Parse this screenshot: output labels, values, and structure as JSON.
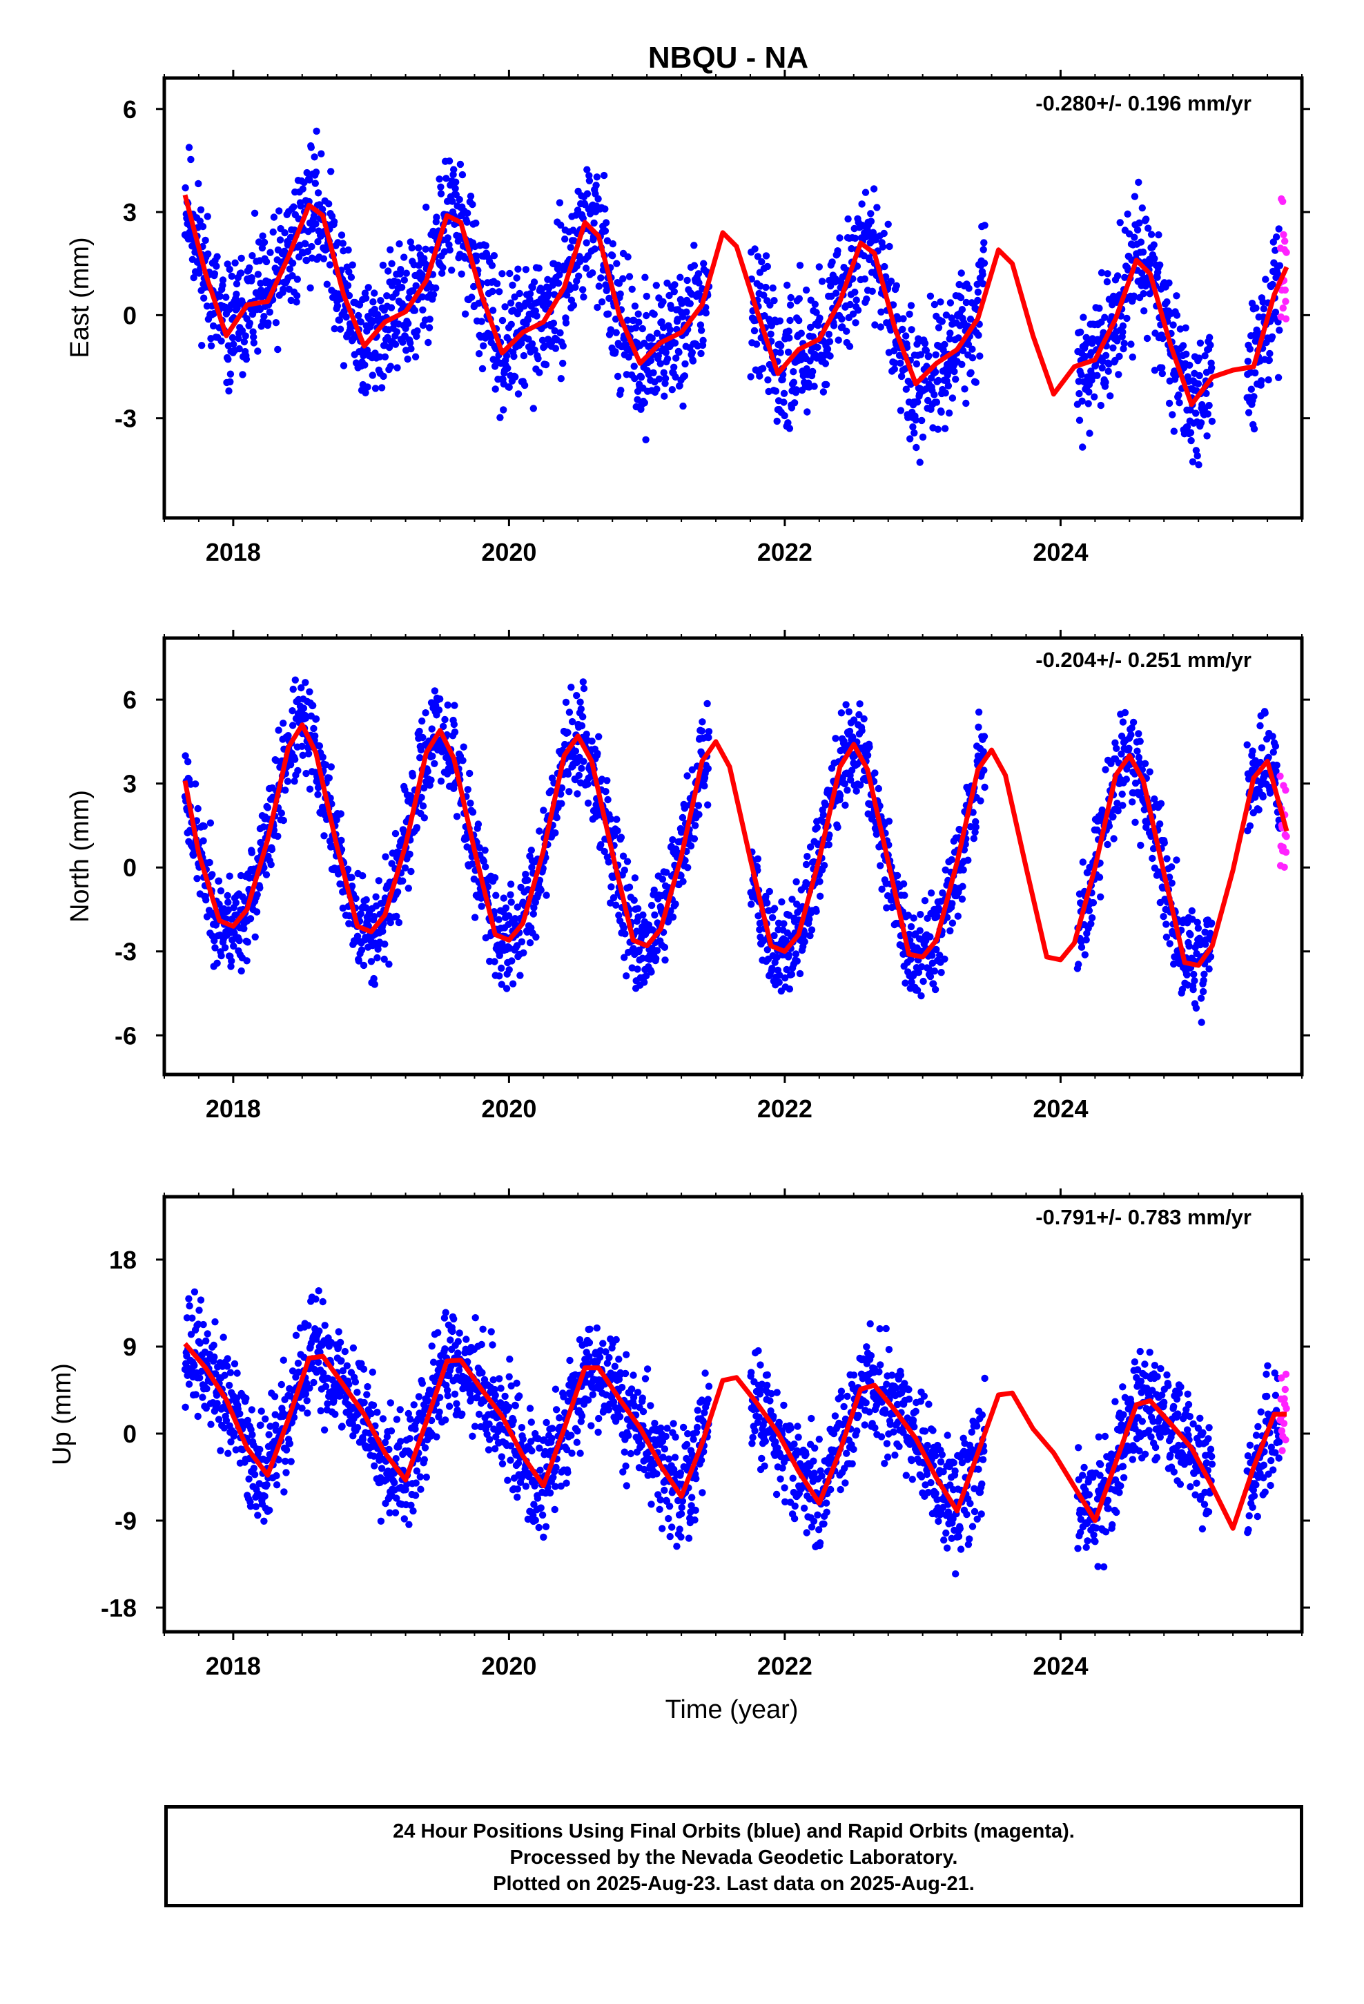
{
  "title": "NBQU - NA",
  "colors": {
    "final_orbits": "#0000ff",
    "rapid_orbits": "#ff22ff",
    "fit": "#ff0000",
    "frame": "#000000"
  },
  "xlabel": "Time (year)",
  "footer": {
    "line1": "24 Hour Positions Using Final Orbits (blue) and Rapid Orbits (magenta).",
    "line2": "Processed by the Nevada Geodetic Laboratory.",
    "line3": "Plotted on 2025-Aug-23. Last data on 2025-Aug-21."
  },
  "chart_data": [
    {
      "type": "scatter",
      "ylabel": "East (mm)",
      "rate": "-0.280+/- 0.196 mm/yr",
      "xlim": [
        2017.5,
        2025.75
      ],
      "ylim": [
        -5.9,
        6.9
      ],
      "xticks": [
        2018,
        2020,
        2022,
        2024
      ],
      "xtick_labels": [
        "2018",
        "2020",
        "2022",
        "2024"
      ],
      "yticks": [
        -3,
        0,
        3,
        6
      ],
      "ytick_labels": [
        "-3",
        "0",
        "3",
        "6"
      ],
      "data_start": 2017.65,
      "data_end": 2025.64,
      "gaps": [
        [
          2021.45,
          2021.75
        ],
        [
          2023.45,
          2024.12
        ],
        [
          2025.1,
          2025.35
        ]
      ],
      "rapid_start": 2025.59,
      "series": [
        {
          "name": "Final Orbits",
          "note": "about 2500 daily positions, blue dots"
        },
        {
          "name": "Rapid Orbits",
          "note": "daily positions, magenta dots at the end"
        },
        {
          "name": "Model fit",
          "note": "red curve"
        }
      ],
      "fit": {
        "x": [
          2017.65,
          2017.8,
          2017.95,
          2018.1,
          2018.25,
          2018.4,
          2018.55,
          2018.65,
          2018.8,
          2018.95,
          2019.1,
          2019.25,
          2019.4,
          2019.55,
          2019.65,
          2019.8,
          2019.95,
          2020.1,
          2020.25,
          2020.4,
          2020.55,
          2020.65,
          2020.8,
          2020.95,
          2021.1,
          2021.25,
          2021.4,
          2021.55,
          2021.65,
          2021.8,
          2021.95,
          2022.1,
          2022.25,
          2022.4,
          2022.55,
          2022.65,
          2022.8,
          2022.95,
          2023.1,
          2023.25,
          2023.4,
          2023.55,
          2023.65,
          2023.8,
          2023.95,
          2024.1,
          2024.25,
          2024.4,
          2024.55,
          2024.65,
          2024.8,
          2024.95,
          2025.1,
          2025.25,
          2025.4,
          2025.55,
          2025.64
        ],
        "y": [
          3.5,
          1.2,
          -0.6,
          0.3,
          0.4,
          1.7,
          3.2,
          2.9,
          0.6,
          -0.9,
          -0.2,
          0.1,
          1.0,
          2.9,
          2.7,
          0.6,
          -1.1,
          -0.5,
          -0.2,
          0.8,
          2.7,
          2.3,
          0.0,
          -1.4,
          -0.8,
          -0.5,
          0.3,
          2.4,
          2.0,
          0.1,
          -1.7,
          -1.0,
          -0.7,
          0.4,
          2.1,
          1.8,
          -0.4,
          -2.0,
          -1.4,
          -1.0,
          -0.1,
          1.9,
          1.5,
          -0.6,
          -2.3,
          -1.5,
          -1.3,
          -0.1,
          1.6,
          1.2,
          -0.9,
          -2.6,
          -1.8,
          -1.6,
          -1.5,
          0.6,
          1.4
        ]
      }
    },
    {
      "type": "scatter",
      "ylabel": "North (mm)",
      "rate": "-0.204+/- 0.251 mm/yr",
      "xlim": [
        2017.5,
        2025.75
      ],
      "ylim": [
        -7.4,
        8.2
      ],
      "xticks": [
        2018,
        2020,
        2022,
        2024
      ],
      "xtick_labels": [
        "2018",
        "2020",
        "2022",
        "2024"
      ],
      "yticks": [
        -6,
        -3,
        0,
        3,
        6
      ],
      "ytick_labels": [
        "-6",
        "-3",
        "0",
        "3",
        "6"
      ],
      "data_start": 2017.65,
      "data_end": 2025.64,
      "gaps": [
        [
          2021.45,
          2021.75
        ],
        [
          2023.45,
          2024.12
        ],
        [
          2025.1,
          2025.35
        ]
      ],
      "rapid_start": 2025.59,
      "series": [
        {
          "name": "Final Orbits",
          "note": "about 2500 daily positions, blue dots"
        },
        {
          "name": "Rapid Orbits",
          "note": "daily positions, magenta dots at the end"
        },
        {
          "name": "Model fit",
          "note": "red curve"
        }
      ],
      "fit": {
        "x": [
          2017.65,
          2017.75,
          2017.9,
          2018.0,
          2018.1,
          2018.25,
          2018.4,
          2018.5,
          2018.6,
          2018.75,
          2018.9,
          2019.0,
          2019.1,
          2019.25,
          2019.4,
          2019.5,
          2019.6,
          2019.75,
          2019.9,
          2020.0,
          2020.1,
          2020.25,
          2020.4,
          2020.5,
          2020.6,
          2020.75,
          2020.9,
          2021.0,
          2021.1,
          2021.25,
          2021.4,
          2021.5,
          2021.6,
          2021.75,
          2021.9,
          2022.0,
          2022.1,
          2022.25,
          2022.4,
          2022.5,
          2022.6,
          2022.75,
          2022.9,
          2023.0,
          2023.1,
          2023.25,
          2023.4,
          2023.5,
          2023.6,
          2023.75,
          2023.9,
          2024.0,
          2024.1,
          2024.25,
          2024.4,
          2024.5,
          2024.6,
          2024.75,
          2024.9,
          2025.0,
          2025.1,
          2025.25,
          2025.4,
          2025.5,
          2025.64
        ],
        "y": [
          3.1,
          0.5,
          -1.9,
          -2.1,
          -1.5,
          1.0,
          4.3,
          5.1,
          4.1,
          0.8,
          -2.1,
          -2.3,
          -1.7,
          0.8,
          4.1,
          4.9,
          3.9,
          0.6,
          -2.4,
          -2.6,
          -2.0,
          0.6,
          4.0,
          4.7,
          3.8,
          0.5,
          -2.6,
          -2.8,
          -2.2,
          0.4,
          3.8,
          4.5,
          3.6,
          0.3,
          -2.8,
          -3.0,
          -2.4,
          0.3,
          3.6,
          4.4,
          3.5,
          0.2,
          -3.1,
          -3.2,
          -2.6,
          0.2,
          3.5,
          4.2,
          3.3,
          0.0,
          -3.2,
          -3.3,
          -2.7,
          0.0,
          3.3,
          4.0,
          3.1,
          -0.2,
          -3.4,
          -3.5,
          -2.8,
          -0.1,
          3.2,
          3.8,
          1.3
        ]
      }
    },
    {
      "type": "scatter",
      "ylabel": "Up (mm)",
      "rate": "-0.791+/- 0.783 mm/yr",
      "xlim": [
        2017.5,
        2025.75
      ],
      "ylim": [
        -20.5,
        24.5
      ],
      "xticks": [
        2018,
        2020,
        2022,
        2024
      ],
      "xtick_labels": [
        "2018",
        "2020",
        "2022",
        "2024"
      ],
      "yticks": [
        -18,
        -9,
        0,
        9,
        18
      ],
      "ytick_labels": [
        "-18",
        "-9",
        "0",
        "9",
        "18"
      ],
      "data_start": 2017.65,
      "data_end": 2025.64,
      "gaps": [
        [
          2021.45,
          2021.75
        ],
        [
          2023.45,
          2024.12
        ],
        [
          2025.1,
          2025.35
        ]
      ],
      "rapid_start": 2025.59,
      "series": [
        {
          "name": "Final Orbits",
          "note": "about 2500 daily positions, blue dots"
        },
        {
          "name": "Rapid Orbits",
          "note": "daily positions, magenta dots at the end"
        },
        {
          "name": "Model fit",
          "note": "red curve"
        }
      ],
      "fit": {
        "x": [
          2017.65,
          2017.8,
          2017.95,
          2018.1,
          2018.25,
          2018.4,
          2018.55,
          2018.65,
          2018.8,
          2018.95,
          2019.1,
          2019.25,
          2019.4,
          2019.55,
          2019.65,
          2019.8,
          2019.95,
          2020.1,
          2020.25,
          2020.4,
          2020.55,
          2020.65,
          2020.8,
          2020.95,
          2021.1,
          2021.25,
          2021.4,
          2021.55,
          2021.65,
          2021.8,
          2021.95,
          2022.1,
          2022.25,
          2022.4,
          2022.55,
          2022.65,
          2022.8,
          2022.95,
          2023.1,
          2023.25,
          2023.4,
          2023.55,
          2023.65,
          2023.8,
          2023.95,
          2024.1,
          2024.25,
          2024.4,
          2024.55,
          2024.65,
          2024.8,
          2024.95,
          2025.1,
          2025.25,
          2025.4,
          2025.55,
          2025.64
        ],
        "y": [
          9.3,
          6.8,
          3.5,
          -1.5,
          -4.3,
          1.5,
          7.8,
          8.0,
          5.0,
          2.0,
          -2.0,
          -4.8,
          1.2,
          7.5,
          7.6,
          4.6,
          1.8,
          -2.3,
          -5.4,
          0.5,
          6.8,
          6.8,
          3.6,
          0.6,
          -3.3,
          -6.5,
          -1.0,
          5.5,
          5.8,
          3.1,
          0.1,
          -3.9,
          -7.2,
          -1.8,
          4.6,
          5.0,
          2.4,
          -0.5,
          -4.6,
          -8.0,
          -2.0,
          4.0,
          4.2,
          0.5,
          -2.0,
          -5.5,
          -9.0,
          -3.0,
          3.0,
          3.4,
          1.0,
          -1.5,
          -5.5,
          -9.8,
          -3.5,
          2.0,
          2.0
        ]
      }
    }
  ]
}
